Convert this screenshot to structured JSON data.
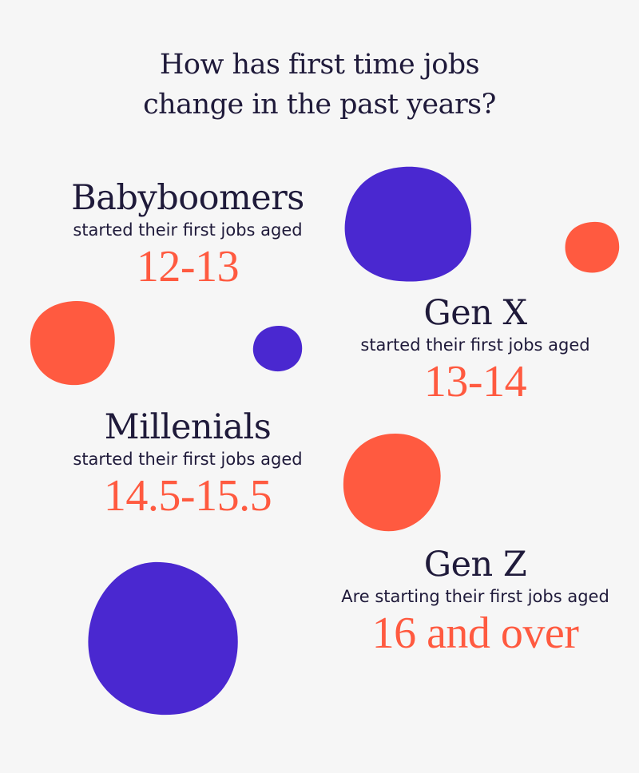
{
  "title": {
    "line1": "How has first time jobs",
    "line2": "change in the past years?"
  },
  "colors": {
    "background": "#f6f6f6",
    "navy_text": "#1f1a3a",
    "accent_orange": "#ff5a40",
    "blob_purple": "#4a28d0"
  },
  "generations": [
    {
      "name": "Babyboomers",
      "subtitle": "started their first jobs aged",
      "age": "12-13"
    },
    {
      "name": "Gen X",
      "subtitle": "started their first jobs aged",
      "age": "13-14"
    },
    {
      "name": "Millenials",
      "subtitle": "started their first jobs aged",
      "age": "14.5-15.5"
    },
    {
      "name": "Gen Z",
      "subtitle": "Are starting their first jobs aged",
      "age": "16 and over"
    }
  ]
}
